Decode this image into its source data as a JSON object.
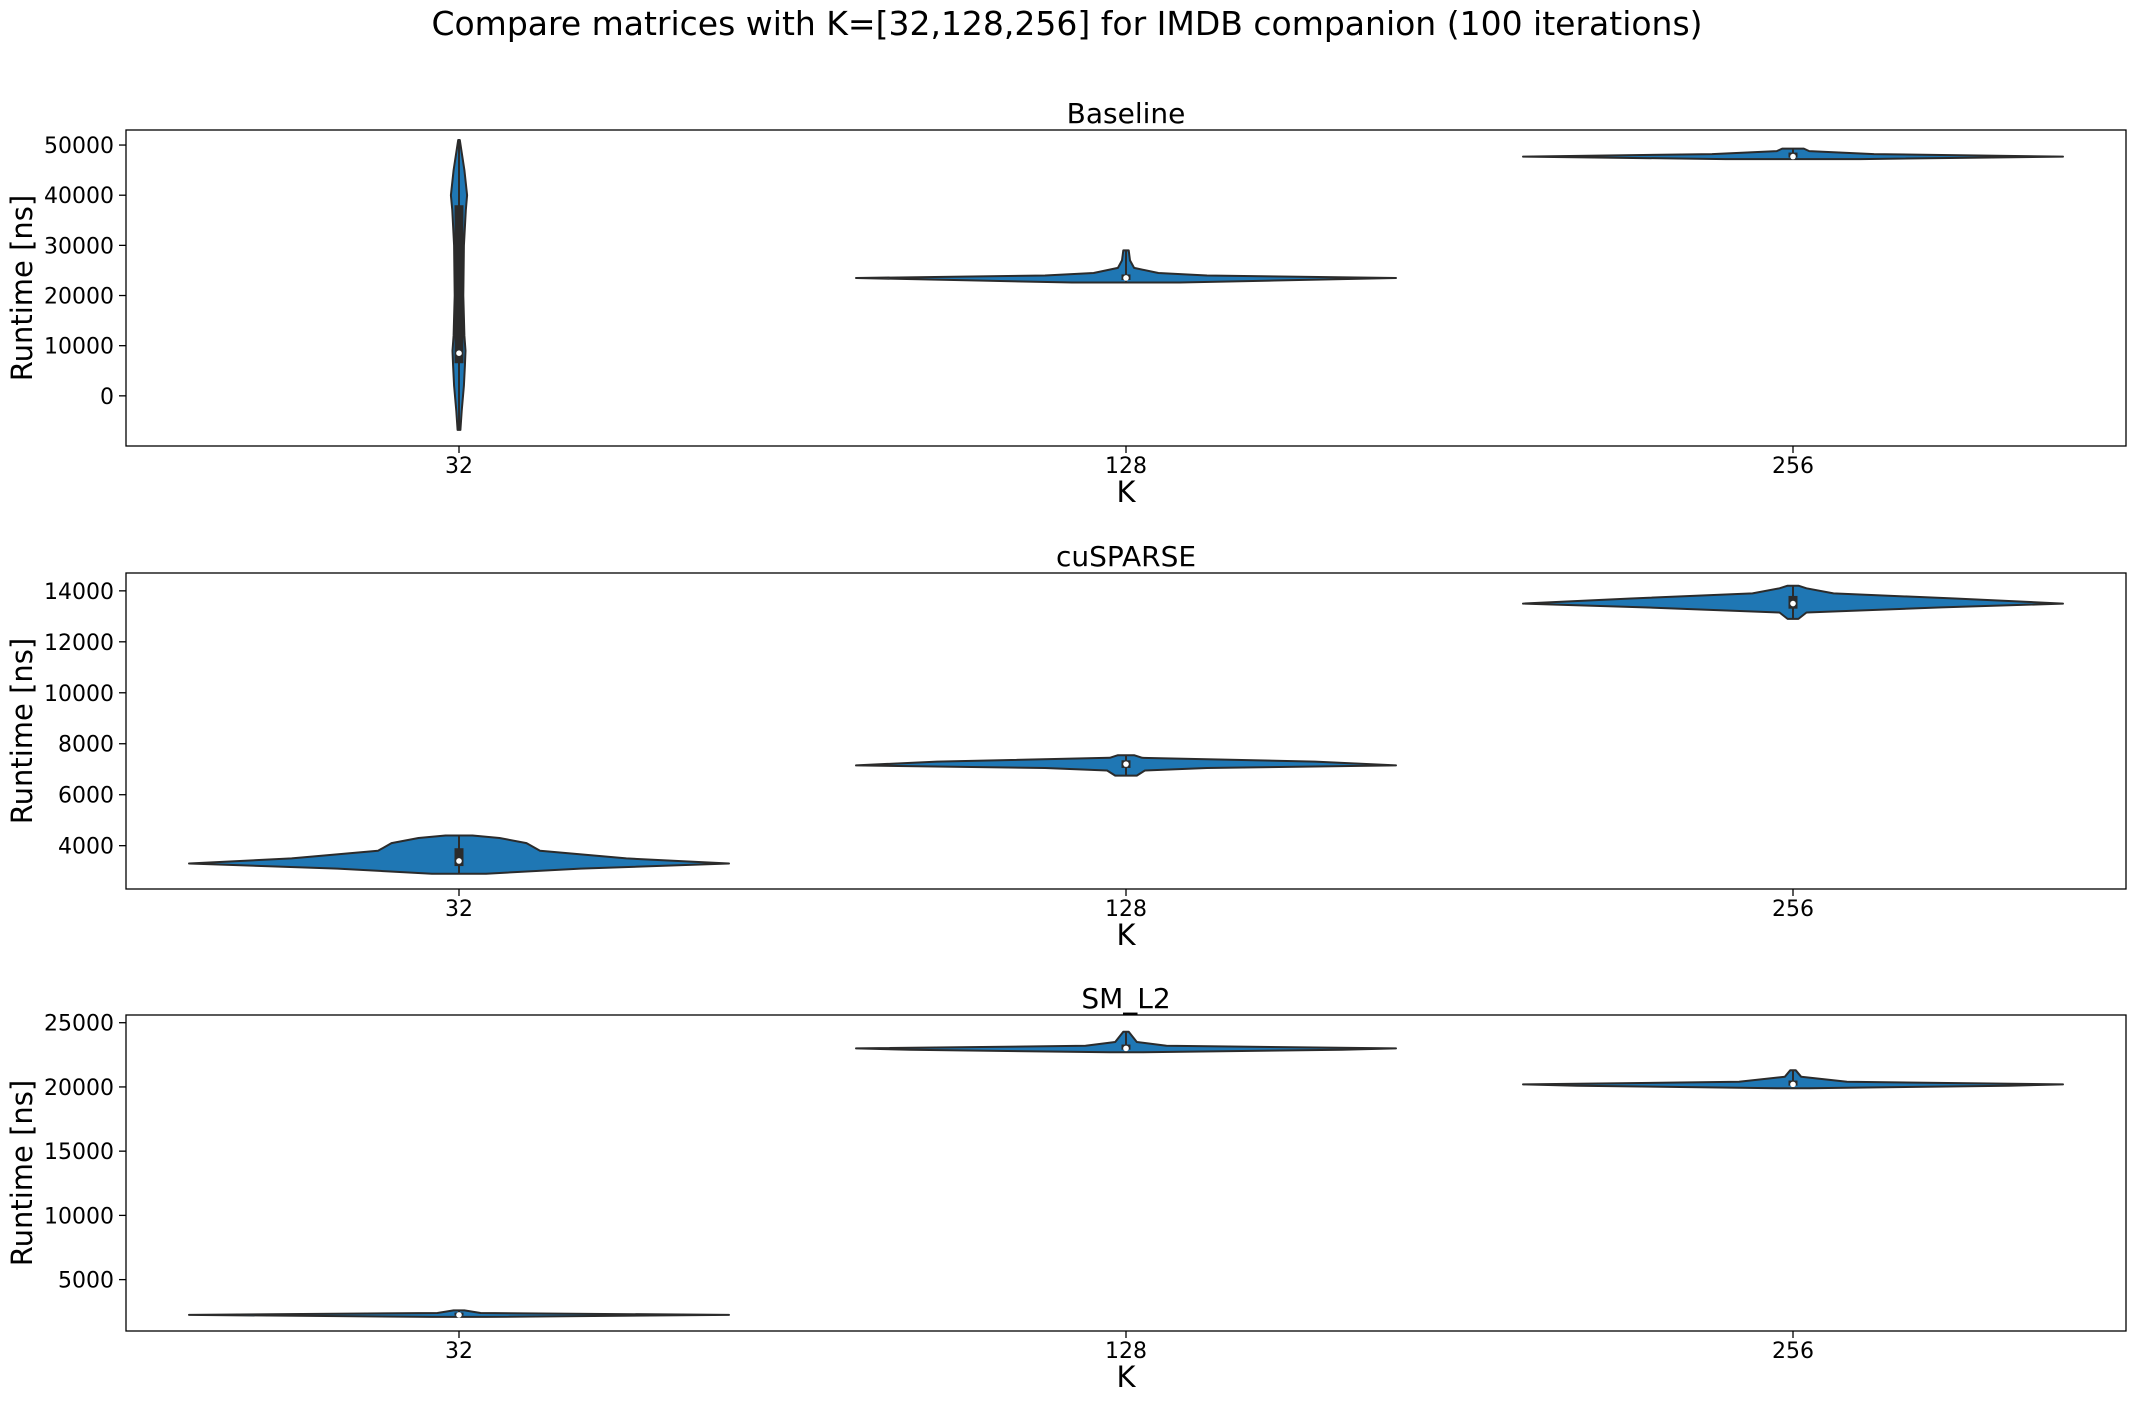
{
  "figure": {
    "title": "Compare matrices with K=[32,128,256] for IMDB companion (100 iterations)",
    "violin_color": "#1f77b4",
    "edge_color": "#2b2b2b"
  },
  "chart_data": [
    {
      "type": "violin",
      "title": "Baseline",
      "xlabel": "K",
      "ylabel": "Runtime [ns]",
      "categories": [
        "32",
        "128",
        "256"
      ],
      "ylim": [
        -10000,
        53000
      ],
      "yticks": [
        0,
        10000,
        20000,
        30000,
        40000,
        50000
      ],
      "ytick_labels": [
        "0",
        "10000",
        "20000",
        "30000",
        "40000",
        "50000"
      ],
      "grid": false,
      "violins": [
        {
          "category": "32",
          "min": -6800,
          "q1": 6500,
          "median": 8500,
          "q3": 38000,
          "max": 51000,
          "profile": [
            [
              -6800,
              0.005
            ],
            [
              -3000,
              0.01
            ],
            [
              2000,
              0.018
            ],
            [
              6000,
              0.022
            ],
            [
              9000,
              0.024
            ],
            [
              12000,
              0.02
            ],
            [
              20000,
              0.016
            ],
            [
              30000,
              0.018
            ],
            [
              37000,
              0.025
            ],
            [
              40000,
              0.03
            ],
            [
              45000,
              0.02
            ],
            [
              51000,
              0.003
            ]
          ]
        },
        {
          "category": "128",
          "min": 22600,
          "q1": 23100,
          "median": 23500,
          "q3": 24200,
          "max": 29000,
          "profile": [
            [
              22600,
              0.2
            ],
            [
              23000,
              0.55
            ],
            [
              23500,
              1.0
            ],
            [
              24000,
              0.3
            ],
            [
              24500,
              0.12
            ],
            [
              25500,
              0.03
            ],
            [
              27000,
              0.015
            ],
            [
              29000,
              0.01
            ]
          ]
        },
        {
          "category": "256",
          "min": 47200,
          "q1": 47500,
          "median": 47700,
          "q3": 48500,
          "max": 49300,
          "profile": [
            [
              47200,
              0.25
            ],
            [
              47500,
              0.7
            ],
            [
              47700,
              1.0
            ],
            [
              48200,
              0.3
            ],
            [
              48800,
              0.06
            ],
            [
              49300,
              0.04
            ]
          ]
        }
      ]
    },
    {
      "type": "violin",
      "title": "cuSPARSE",
      "xlabel": "K",
      "ylabel": "Runtime [ns]",
      "categories": [
        "32",
        "128",
        "256"
      ],
      "ylim": [
        2300,
        14700
      ],
      "yticks": [
        4000,
        6000,
        8000,
        10000,
        12000,
        14000
      ],
      "ytick_labels": [
        "4000",
        "6000",
        "8000",
        "10000",
        "12000",
        "14000"
      ],
      "grid": false,
      "violins": [
        {
          "category": "32",
          "min": 2900,
          "q1": 3200,
          "median": 3400,
          "q3": 3900,
          "max": 4400,
          "profile": [
            [
              2900,
              0.1
            ],
            [
              3100,
              0.45
            ],
            [
              3300,
              1.0
            ],
            [
              3500,
              0.62
            ],
            [
              3800,
              0.3
            ],
            [
              4100,
              0.25
            ],
            [
              4300,
              0.15
            ],
            [
              4400,
              0.05
            ]
          ]
        },
        {
          "category": "128",
          "min": 6750,
          "q1": 7050,
          "median": 7200,
          "q3": 7350,
          "max": 7550,
          "profile": [
            [
              6750,
              0.04
            ],
            [
              6950,
              0.07
            ],
            [
              7050,
              0.3
            ],
            [
              7150,
              1.0
            ],
            [
              7300,
              0.7
            ],
            [
              7450,
              0.06
            ],
            [
              7550,
              0.03
            ]
          ]
        },
        {
          "category": "256",
          "min": 12900,
          "q1": 13300,
          "median": 13500,
          "q3": 13800,
          "max": 14200,
          "profile": [
            [
              12900,
              0.02
            ],
            [
              13150,
              0.05
            ],
            [
              13350,
              0.55
            ],
            [
              13500,
              1.0
            ],
            [
              13700,
              0.6
            ],
            [
              13900,
              0.15
            ],
            [
              14100,
              0.05
            ],
            [
              14200,
              0.02
            ]
          ]
        }
      ]
    },
    {
      "type": "violin",
      "title": "SM_L2",
      "xlabel": "K",
      "ylabel": "Runtime [ns]",
      "categories": [
        "32",
        "128",
        "256"
      ],
      "ylim": [
        1000,
        25600
      ],
      "yticks": [
        5000,
        10000,
        15000,
        20000,
        25000
      ],
      "ytick_labels": [
        "5000",
        "10000",
        "15000",
        "20000",
        "25000"
      ],
      "grid": false,
      "violins": [
        {
          "category": "32",
          "min": 2100,
          "q1": 2200,
          "median": 2250,
          "q3": 2400,
          "max": 2600,
          "profile": [
            [
              2100,
              0.1
            ],
            [
              2250,
              1.0
            ],
            [
              2400,
              0.08
            ],
            [
              2600,
              0.02
            ]
          ]
        },
        {
          "category": "128",
          "min": 22700,
          "q1": 22900,
          "median": 23000,
          "q3": 23300,
          "max": 24300,
          "profile": [
            [
              22700,
              0.06
            ],
            [
              22900,
              0.8
            ],
            [
              23000,
              1.0
            ],
            [
              23200,
              0.15
            ],
            [
              23500,
              0.04
            ],
            [
              24300,
              0.01
            ]
          ]
        },
        {
          "category": "256",
          "min": 19900,
          "q1": 20100,
          "median": 20200,
          "q3": 20500,
          "max": 21300,
          "profile": [
            [
              19900,
              0.06
            ],
            [
              20100,
              0.8
            ],
            [
              20200,
              1.0
            ],
            [
              20400,
              0.2
            ],
            [
              20800,
              0.03
            ],
            [
              21300,
              0.01
            ]
          ]
        }
      ]
    }
  ]
}
